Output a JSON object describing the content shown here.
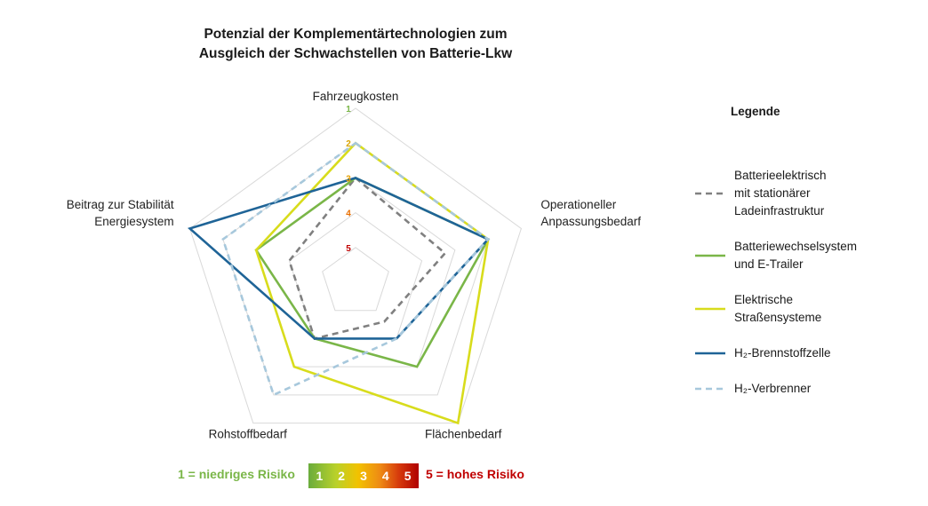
{
  "chart_data": {
    "type": "radar",
    "title_line1": "Potenzial der Komplementärtechnologien zum",
    "title_line2": "Ausgleich der Schwachstellen von Batterie-Lkw",
    "axes": [
      {
        "id": "fahrzeugkosten",
        "lines": [
          "Fahrzeugkosten"
        ]
      },
      {
        "id": "anpassungsbedarf",
        "lines": [
          "Operationeller",
          "Anpassungsbedarf"
        ]
      },
      {
        "id": "flaechenbedarf",
        "lines": [
          "Flächenbedarf"
        ]
      },
      {
        "id": "rohstoffbedarf",
        "lines": [
          "Rohstoffbedarf"
        ]
      },
      {
        "id": "stabilitaet",
        "lines": [
          "Beitrag zur Stabilität",
          "Energiesystem"
        ]
      }
    ],
    "scale_min": 1,
    "scale_max": 5,
    "scale_direction": "1 at outer ring, 5 near center",
    "ticks": [
      {
        "label": "1",
        "color": "#7ab648"
      },
      {
        "label": "2",
        "color": "#d9a400"
      },
      {
        "label": "3",
        "color": "#e8a000"
      },
      {
        "label": "4",
        "color": "#e86e00"
      },
      {
        "label": "5",
        "color": "#c00000"
      }
    ],
    "series": [
      {
        "name": "Batterieelektrisch mit stationärer Ladeinfrastruktur",
        "legend_lines": [
          "Batterieelektrisch",
          "mit stationärer",
          "Ladeinfrastruktur"
        ],
        "color": "#808080",
        "dash": "dashed",
        "values": [
          3.0,
          3.3,
          4.6,
          4.0,
          4.0
        ]
      },
      {
        "name": "Batteriewechselsystem und E-Trailer",
        "legend_lines": [
          "Batteriewechselsystem",
          "und E-Trailer"
        ],
        "color": "#7ab648",
        "dash": "solid",
        "values": [
          3.0,
          2.0,
          3.0,
          4.0,
          3.0
        ]
      },
      {
        "name": "Elektrische Straßensysteme",
        "legend_lines": [
          "Elektrische",
          "Straßensysteme"
        ],
        "color": "#d8dc1c",
        "dash": "solid",
        "values": [
          2.0,
          2.0,
          1.0,
          3.0,
          3.0
        ]
      },
      {
        "name": "H2-Brennstoffzelle",
        "legend_lines": [
          "H₂-Brennstoffzelle"
        ],
        "color": "#1f6497",
        "dash": "solid",
        "values": [
          3.0,
          2.0,
          4.0,
          4.0,
          1.0
        ]
      },
      {
        "name": "H2-Verbrenner",
        "legend_lines": [
          "H₂-Verbrenner"
        ],
        "color": "#a7c8dc",
        "dash": "dashed",
        "values": [
          2.0,
          2.0,
          4.0,
          2.0,
          2.0
        ]
      }
    ],
    "legend_title": "Legende",
    "legend_position": "right",
    "grid": true
  },
  "scale_bar": {
    "low_label": "1 = niedriges Risiko",
    "high_label": "5 = hohes Risiko",
    "numbers": [
      "1",
      "2",
      "3",
      "4",
      "5"
    ]
  }
}
